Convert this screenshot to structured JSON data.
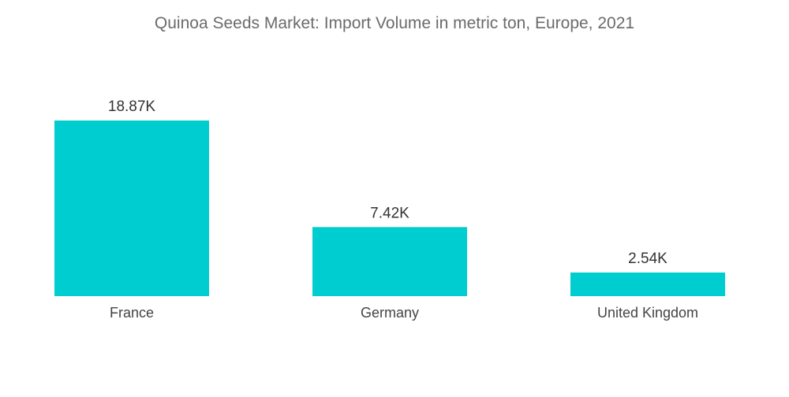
{
  "chart_data": {
    "type": "bar",
    "title": "Quinoa Seeds Market: Import Volume in metric ton, Europe, 2021",
    "categories": [
      "France",
      "Germany",
      "United Kingdom"
    ],
    "values": [
      18.87,
      7.42,
      2.54
    ],
    "value_labels": [
      "18.87K",
      "7.42K",
      "2.54K"
    ],
    "unit": "K metric ton",
    "xlabel": "",
    "ylabel": "",
    "ylim": [
      0,
      18.87
    ],
    "grid": false,
    "legend": "none",
    "bar_color": "#00cdd0"
  }
}
